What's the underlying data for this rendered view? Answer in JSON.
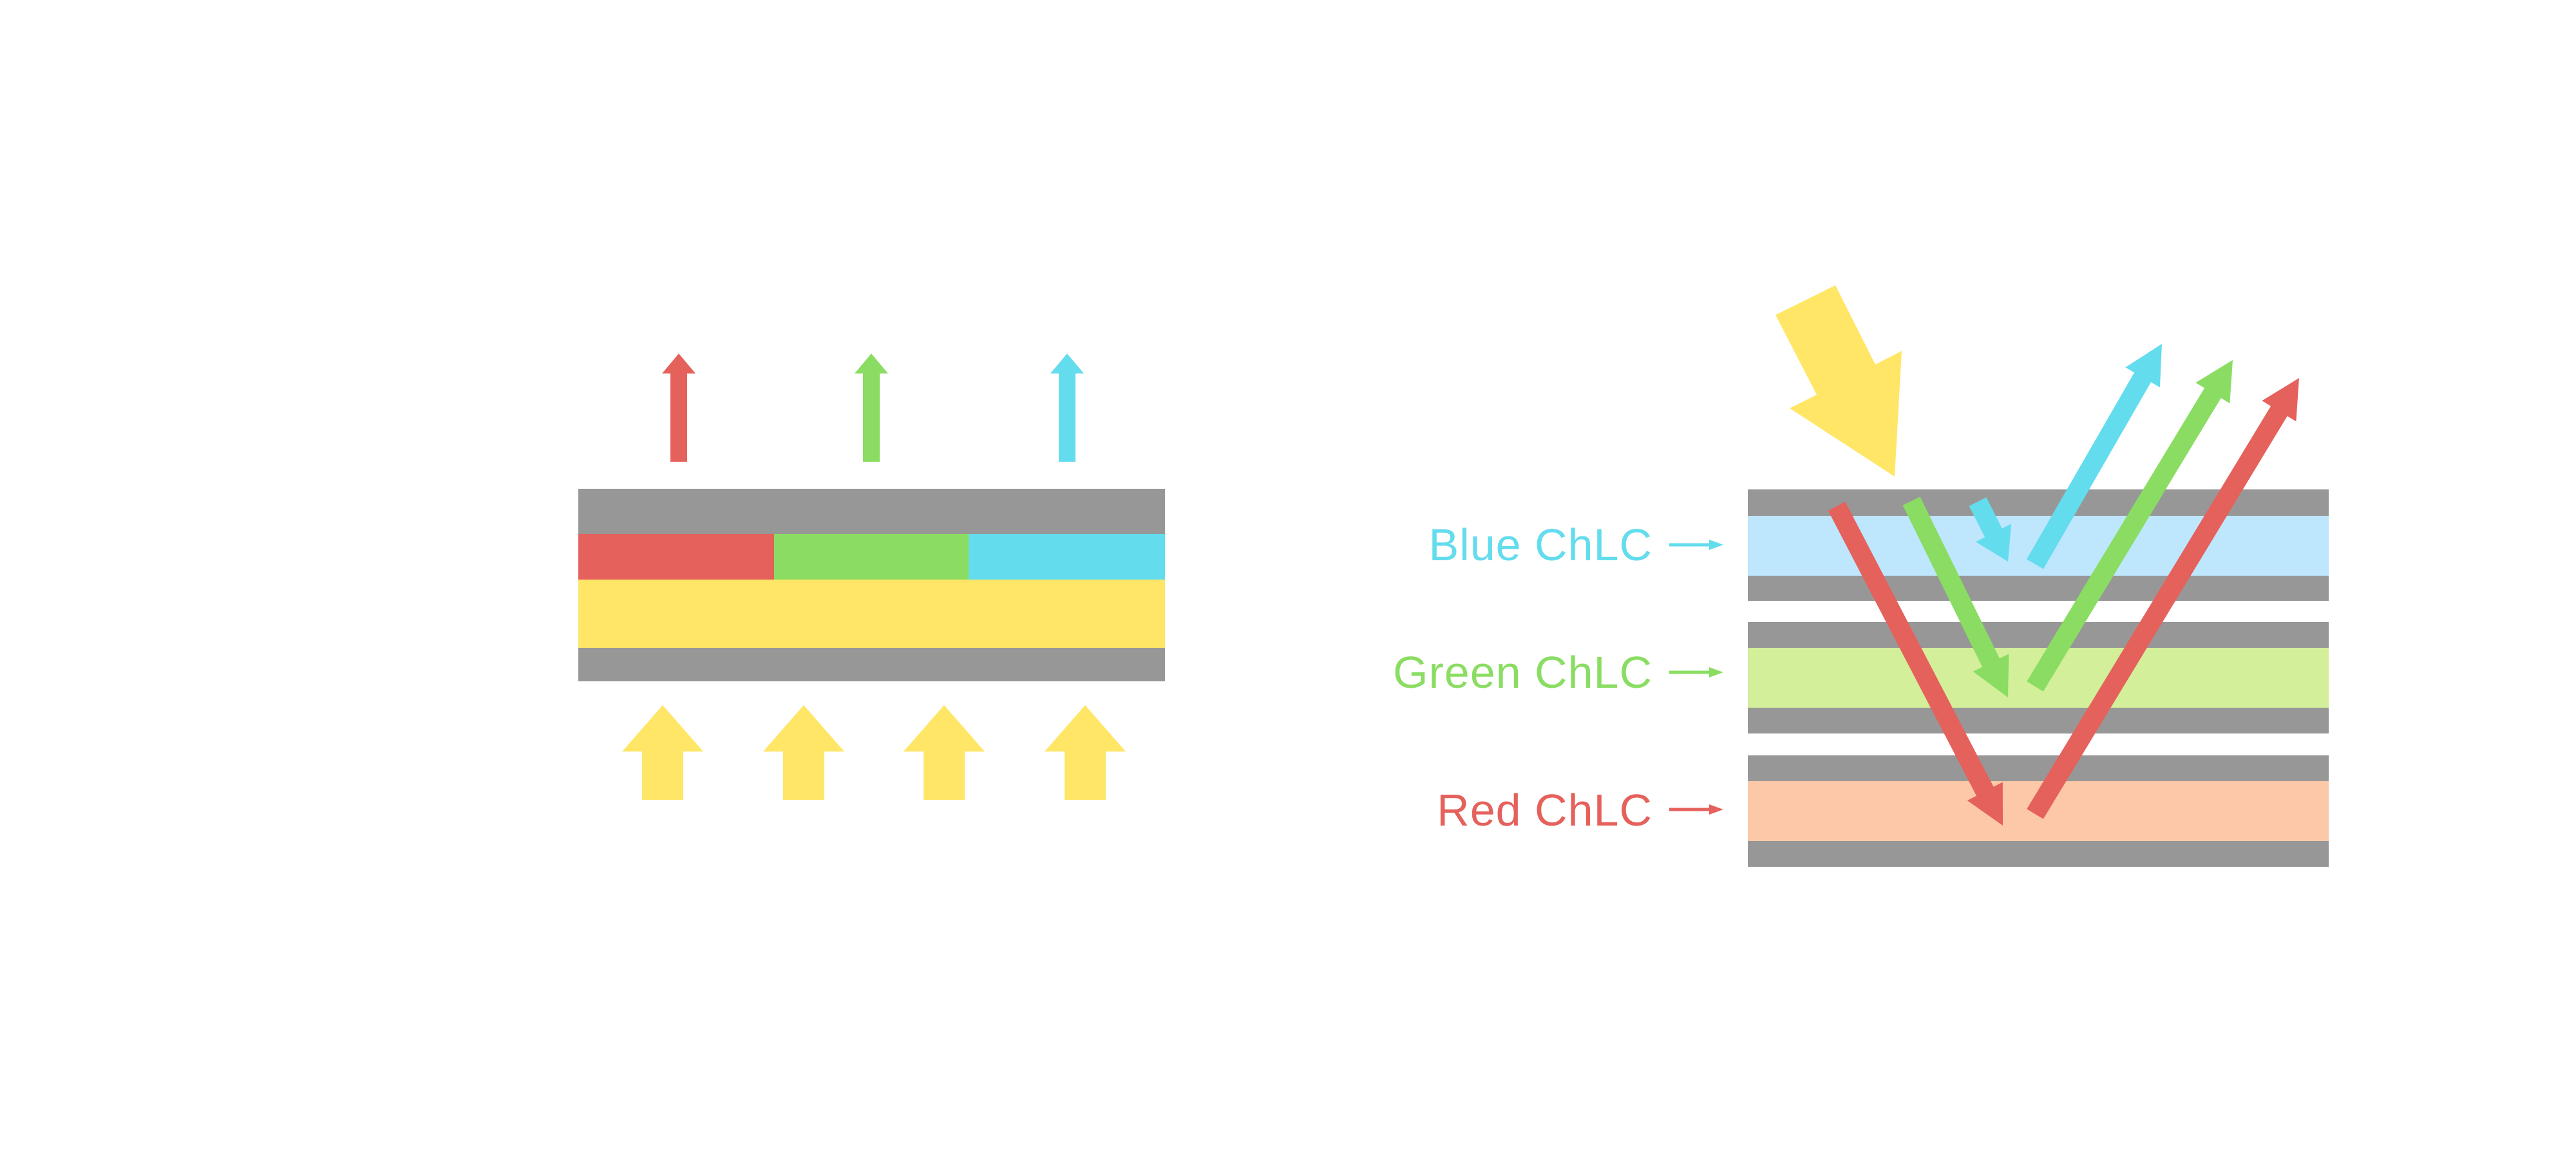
{
  "colors": {
    "red": "#E5615C",
    "green": "#8ADD62",
    "blue": "#63DCEE",
    "yellow": "#FFE666",
    "gray": "#979797",
    "blue_layer": "#BEE6FD",
    "green_layer": "#D3EF9A",
    "red_layer": "#FDC8A8"
  },
  "labels": {
    "blue": "Blue ChLC",
    "green": "Green ChLC",
    "red": "Red ChLC"
  }
}
